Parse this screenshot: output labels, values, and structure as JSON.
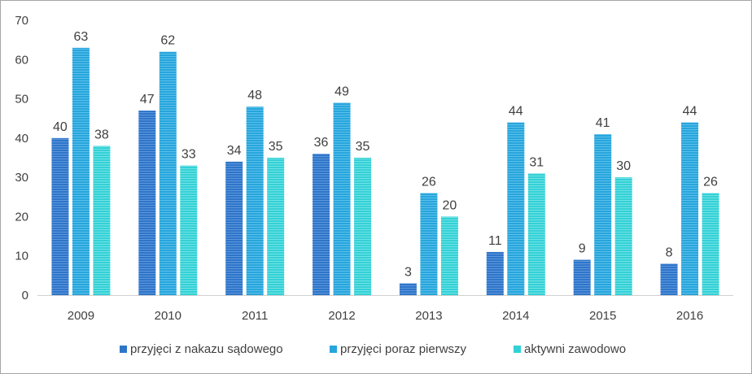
{
  "chart_data": {
    "type": "bar",
    "categories": [
      "2009",
      "2010",
      "2011",
      "2012",
      "2013",
      "2014",
      "2015",
      "2016"
    ],
    "series": [
      {
        "name": "przyjęci z nakazu sądowego",
        "values": [
          40,
          47,
          34,
          36,
          3,
          11,
          9,
          8
        ],
        "color": "#2e75c9"
      },
      {
        "name": "przyjęci poraz pierwszy",
        "values": [
          63,
          62,
          48,
          49,
          26,
          44,
          41,
          44
        ],
        "color": "#27a5dc"
      },
      {
        "name": "aktywni zawodowo",
        "values": [
          38,
          33,
          35,
          35,
          20,
          31,
          30,
          26
        ],
        "color": "#33d1d6"
      }
    ],
    "ylim": [
      0,
      70
    ],
    "yticks": [
      "0",
      "10",
      "20",
      "30",
      "40",
      "50",
      "60",
      "70"
    ],
    "data_labels": true,
    "grid": false,
    "legend": "bottom"
  }
}
